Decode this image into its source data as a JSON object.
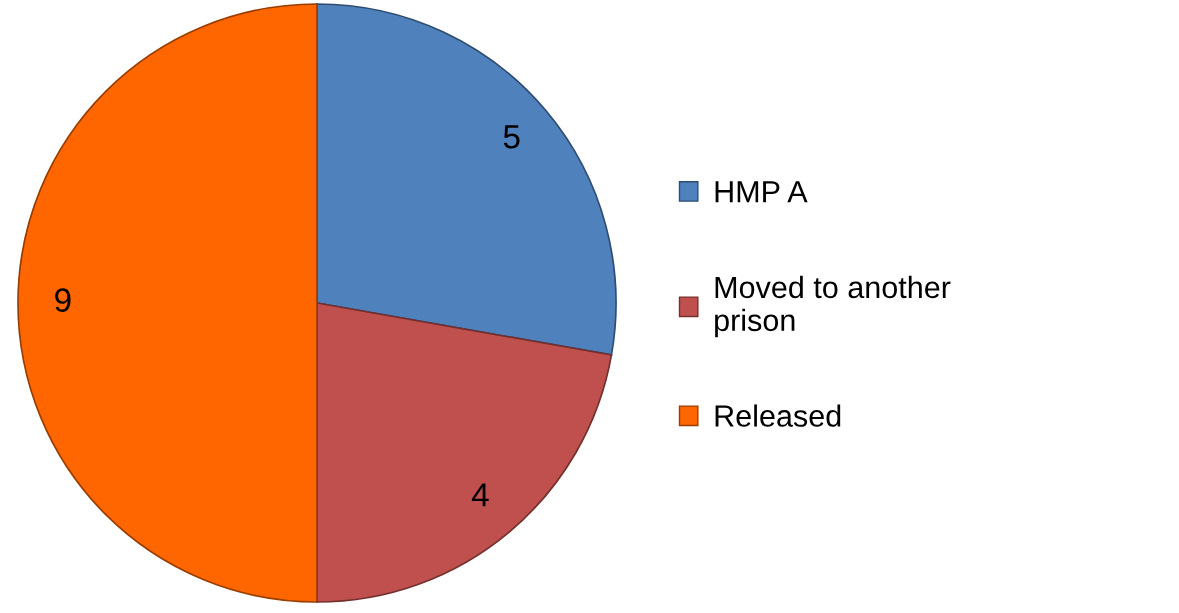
{
  "chart_data": {
    "type": "pie",
    "categories": [
      "HMP A",
      "Moved to another prison",
      "Released"
    ],
    "values": [
      5,
      4,
      9
    ],
    "colors": [
      "#4f81bd",
      "#c0504d",
      "#ff6600"
    ],
    "data_labels": true,
    "legend": "right"
  }
}
